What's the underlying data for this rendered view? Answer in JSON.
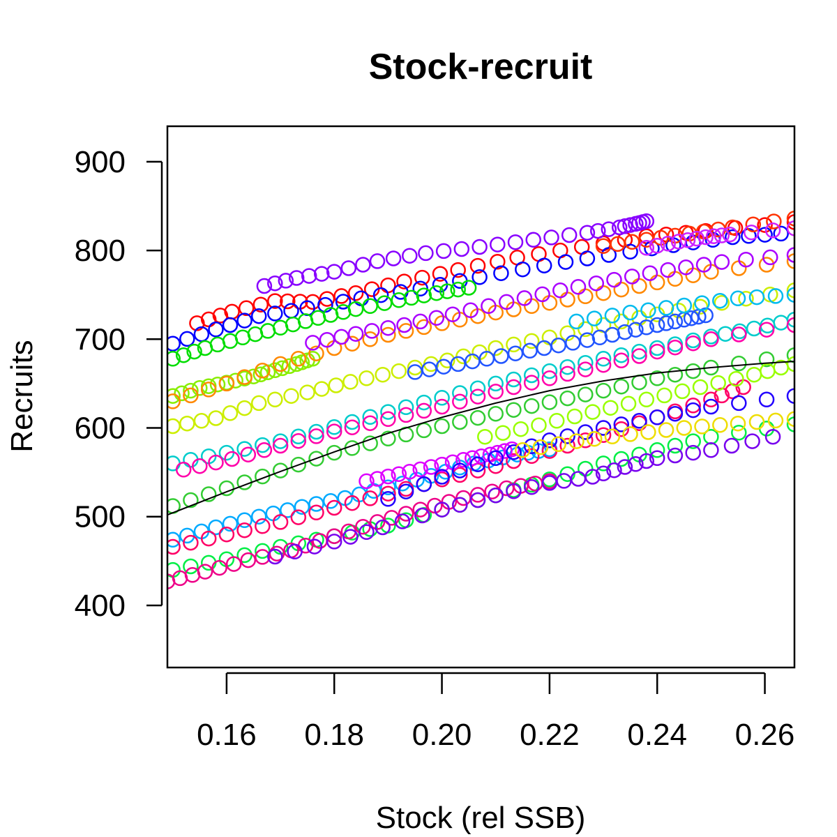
{
  "chart_data": {
    "type": "scatter",
    "title": "Stock-recruit",
    "xlabel": "Stock (rel SSB)",
    "ylabel": "Recruits",
    "xlim": [
      0.149,
      0.2655
    ],
    "ylim": [
      330,
      940
    ],
    "xticks": [
      0.16,
      0.18,
      0.2,
      0.22,
      0.24,
      0.26
    ],
    "xtick_labels": [
      "0.16",
      "0.18",
      "0.20",
      "0.22",
      "0.24",
      "0.26"
    ],
    "yticks": [
      400,
      500,
      600,
      700,
      800,
      900
    ],
    "ytick_labels": [
      "400",
      "500",
      "600",
      "700",
      "800",
      "900"
    ],
    "grid": false,
    "legend": "none",
    "marker": "open-circle",
    "fit_curve": {
      "color": "#000000",
      "x": [
        0.149,
        0.16,
        0.17,
        0.18,
        0.19,
        0.2,
        0.21,
        0.22,
        0.23,
        0.24,
        0.25,
        0.26,
        0.2655
      ],
      "y": [
        502,
        528,
        551,
        573,
        594,
        612,
        628,
        642,
        653,
        662,
        668,
        673,
        675
      ]
    },
    "series": [
      {
        "color": "#FF0000",
        "x": [
          0.1545,
          0.161,
          0.169,
          0.176,
          0.184,
          0.193,
          0.203,
          0.214,
          0.226,
          0.238,
          0.249,
          0.2655
        ],
        "y": [
          718,
          731,
          743,
          742,
          752,
          765,
          778,
          792,
          804,
          816,
          822,
          832
        ]
      },
      {
        "color": "#0000FF",
        "x": [
          0.15,
          0.158,
          0.166,
          0.175,
          0.185,
          0.196,
          0.207,
          0.219,
          0.231,
          0.243,
          0.254,
          0.263
        ],
        "y": [
          695,
          711,
          726,
          735,
          746,
          757,
          770,
          783,
          795,
          806,
          815,
          819
        ]
      },
      {
        "color": "#8800FF",
        "x": [
          0.167,
          0.173,
          0.18,
          0.188,
          0.197,
          0.207,
          0.217,
          0.227,
          0.233,
          0.236,
          0.238
        ],
        "y": [
          760,
          769,
          776,
          788,
          797,
          804,
          812,
          820,
          826,
          830,
          833
        ]
      },
      {
        "color": "#00DD00",
        "x": [
          0.15,
          0.156,
          0.163,
          0.17,
          0.177,
          0.184,
          0.192,
          0.199,
          0.205
        ],
        "y": [
          678,
          690,
          702,
          713,
          724,
          734,
          744,
          752,
          758
        ]
      },
      {
        "color": "#88EE00",
        "x": [
          0.15,
          0.155,
          0.16,
          0.165,
          0.169,
          0.173,
          0.176
        ],
        "y": [
          636,
          645,
          651,
          658,
          665,
          672,
          678
        ]
      },
      {
        "color": "#FF8800",
        "x": [
          0.15,
          0.16,
          0.17,
          0.18,
          0.19,
          0.2,
          0.21,
          0.22,
          0.23,
          0.24,
          0.25,
          0.2655
        ],
        "y": [
          630,
          650,
          672,
          690,
          705,
          718,
          730,
          741,
          752,
          764,
          776,
          788
        ]
      },
      {
        "color": "#CCEE00",
        "x": [
          0.15,
          0.158,
          0.166,
          0.175,
          0.183,
          0.192,
          0.201,
          0.21,
          0.22,
          0.23,
          0.24,
          0.252,
          0.2655
        ],
        "y": [
          602,
          611,
          628,
          640,
          652,
          664,
          676,
          690,
          702,
          716,
          728,
          741,
          755
        ]
      },
      {
        "color": "#00CCCC",
        "x": [
          0.15,
          0.16,
          0.17,
          0.18,
          0.19,
          0.2,
          0.21,
          0.22,
          0.23,
          0.24,
          0.25,
          0.258,
          0.2655
        ],
        "y": [
          560,
          572,
          585,
          601,
          618,
          634,
          650,
          664,
          678,
          690,
          703,
          712,
          722
        ]
      },
      {
        "color": "#AA00FF",
        "x": [
          0.176,
          0.184,
          0.193,
          0.202,
          0.212,
          0.222,
          0.232,
          0.242,
          0.252,
          0.2655
        ],
        "y": [
          696,
          706,
          716,
          728,
          742,
          755,
          767,
          778,
          787,
          795
        ]
      },
      {
        "color": "#2255FF",
        "x": [
          0.195,
          0.203,
          0.211,
          0.219,
          0.227,
          0.234,
          0.24,
          0.245,
          0.249
        ],
        "y": [
          663,
          672,
          681,
          690,
          699,
          708,
          716,
          722,
          727
        ]
      },
      {
        "color": "#FF00AA",
        "x": [
          0.152,
          0.161,
          0.17,
          0.18,
          0.19,
          0.2,
          0.21,
          0.22,
          0.23,
          0.24,
          0.25,
          0.2655
        ],
        "y": [
          553,
          565,
          580,
          596,
          610,
          624,
          641,
          656,
          671,
          686,
          700,
          716
        ]
      },
      {
        "color": "#33CC33",
        "x": [
          0.15,
          0.16,
          0.17,
          0.18,
          0.19,
          0.2,
          0.21,
          0.22,
          0.23,
          0.24,
          0.25,
          0.2655
        ],
        "y": [
          512,
          532,
          552,
          572,
          588,
          602,
          616,
          629,
          642,
          656,
          668,
          682
        ]
      },
      {
        "color": "#00AAFF",
        "x": [
          0.15,
          0.158,
          0.166,
          0.174,
          0.182,
          0.19,
          0.198,
          0.206,
          0.214,
          0.22
        ],
        "y": [
          474,
          488,
          500,
          511,
          521,
          533,
          546,
          560,
          570,
          576
        ]
      },
      {
        "color": "#FF0066",
        "x": [
          0.15,
          0.16,
          0.17,
          0.18,
          0.19,
          0.2,
          0.21,
          0.22,
          0.23,
          0.24,
          0.25,
          0.256
        ],
        "y": [
          466,
          480,
          494,
          510,
          526,
          542,
          557,
          574,
          592,
          612,
          632,
          646
        ]
      },
      {
        "color": "#DD00FF",
        "x": [
          0.186,
          0.192,
          0.198,
          0.204,
          0.209,
          0.213
        ],
        "y": [
          540,
          548,
          556,
          564,
          570,
          576
        ]
      },
      {
        "color": "#2200FF",
        "x": [
          0.19,
          0.2,
          0.21,
          0.22,
          0.23,
          0.24,
          0.25,
          0.2655
        ],
        "y": [
          520,
          545,
          566,
          586,
          600,
          612,
          624,
          636
        ]
      },
      {
        "color": "#00EE44",
        "x": [
          0.15,
          0.16,
          0.17,
          0.18,
          0.19,
          0.2,
          0.21,
          0.22,
          0.23,
          0.24,
          0.25,
          0.2655
        ],
        "y": [
          440,
          452,
          466,
          478,
          490,
          508,
          524,
          542,
          560,
          575,
          590,
          604
        ]
      },
      {
        "color": "#EE0088",
        "x": [
          0.149,
          0.156,
          0.164,
          0.172,
          0.18,
          0.188,
          0.196,
          0.204,
          0.212,
          0.22
        ],
        "y": [
          427,
          438,
          451,
          462,
          478,
          494,
          508,
          521,
          532,
          540
        ]
      },
      {
        "color": "#7700EE",
        "x": [
          0.169,
          0.18,
          0.189,
          0.2,
          0.21,
          0.22,
          0.228,
          0.234,
          0.24,
          0.25,
          0.2615
        ],
        "y": [
          455,
          472,
          488,
          508,
          524,
          538,
          545,
          556,
          566,
          575,
          590
        ]
      },
      {
        "color": "#EEDD00",
        "x": [
          0.215,
          0.225,
          0.235,
          0.245,
          0.255,
          0.2655
        ],
        "y": [
          575,
          585,
          593,
          600,
          605,
          610
        ]
      },
      {
        "color": "#99FF00",
        "x": [
          0.208,
          0.218,
          0.228,
          0.238,
          0.248,
          0.258,
          0.2655
        ],
        "y": [
          590,
          603,
          618,
          632,
          646,
          660,
          672
        ]
      },
      {
        "color": "#00BBEE",
        "x": [
          0.225,
          0.235,
          0.245,
          0.255,
          0.2655
        ],
        "y": [
          720,
          730,
          738,
          746,
          750
        ]
      },
      {
        "color": "#FF3300",
        "x": [
          0.23,
          0.238,
          0.246,
          0.254,
          0.2655
        ],
        "y": [
          805,
          812,
          819,
          826,
          836
        ]
      },
      {
        "color": "#CC22FF",
        "x": [
          0.238,
          0.244,
          0.249,
          0.2535,
          0.2655
        ],
        "y": [
          803,
          810,
          815,
          818,
          825
        ]
      }
    ]
  }
}
